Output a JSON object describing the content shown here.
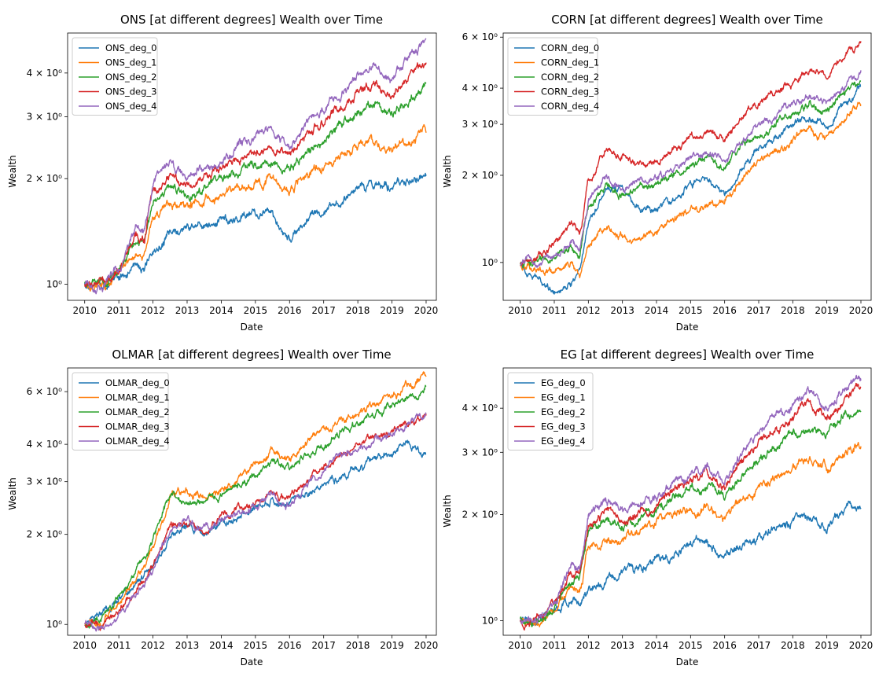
{
  "figure": {
    "x_label": "Date",
    "y_label": "Wealth"
  },
  "colors": {
    "deg_0": "#1f77b4",
    "deg_1": "#ff7f0e",
    "deg_2": "#2ca02c",
    "deg_3": "#d62728",
    "deg_4": "#9467bd"
  },
  "chart_data": [
    {
      "type": "line",
      "title": "ONS [at different degrees] Wealth over Time",
      "xlabel": "Date",
      "ylabel": "Wealth",
      "yscale": "log",
      "xlim": [
        2009.5,
        2020.3
      ],
      "ylim": [
        0.9,
        5.2
      ],
      "yticks": [
        {
          "value": 1,
          "label": "10⁰"
        },
        {
          "value": 2,
          "label": "2 × 10⁰"
        },
        {
          "value": 3,
          "label": "3 × 10⁰"
        },
        {
          "value": 4,
          "label": "4 × 10⁰"
        }
      ],
      "xticks": [
        "2010",
        "2011",
        "2012",
        "2013",
        "2014",
        "2015",
        "2016",
        "2017",
        "2018",
        "2019",
        "2020"
      ],
      "legend_position": "top-left",
      "x": [
        2010,
        2010.5,
        2011,
        2011.5,
        2011.75,
        2012,
        2012.5,
        2013,
        2013.5,
        2014,
        2014.5,
        2015,
        2015.5,
        2015.75,
        2016,
        2016.5,
        2017,
        2017.5,
        2018,
        2018.5,
        2019,
        2019.5,
        2020
      ],
      "series": [
        {
          "name": "ONS_deg_0",
          "values": [
            1.0,
            0.99,
            1.05,
            1.12,
            1.08,
            1.25,
            1.38,
            1.45,
            1.47,
            1.51,
            1.58,
            1.62,
            1.58,
            1.42,
            1.36,
            1.52,
            1.62,
            1.75,
            1.88,
            1.95,
            1.88,
            1.97,
            2.05
          ]
        },
        {
          "name": "ONS_deg_1",
          "values": [
            1.0,
            0.99,
            1.07,
            1.25,
            1.22,
            1.55,
            1.68,
            1.7,
            1.75,
            1.79,
            1.88,
            1.97,
            2.0,
            1.9,
            1.86,
            2.07,
            2.18,
            2.35,
            2.45,
            2.55,
            2.43,
            2.55,
            2.7
          ]
        },
        {
          "name": "ONS_deg_2",
          "values": [
            1.0,
            1.0,
            1.09,
            1.32,
            1.3,
            1.7,
            1.88,
            1.78,
            1.9,
            1.98,
            2.1,
            2.2,
            2.25,
            2.15,
            2.08,
            2.4,
            2.6,
            2.85,
            3.1,
            3.3,
            3.05,
            3.4,
            3.65
          ]
        },
        {
          "name": "ONS_deg_3",
          "values": [
            1.0,
            1.0,
            1.1,
            1.38,
            1.35,
            1.85,
            2.0,
            1.92,
            2.02,
            2.12,
            2.28,
            2.4,
            2.46,
            2.36,
            2.3,
            2.7,
            2.9,
            3.2,
            3.5,
            3.75,
            3.5,
            3.95,
            4.25
          ]
        },
        {
          "name": "ONS_deg_4",
          "values": [
            1.0,
            1.0,
            1.11,
            1.42,
            1.4,
            1.95,
            2.2,
            2.05,
            2.15,
            2.25,
            2.45,
            2.6,
            2.7,
            2.55,
            2.45,
            2.9,
            3.15,
            3.5,
            3.9,
            4.2,
            3.8,
            4.4,
            4.95
          ]
        }
      ]
    },
    {
      "type": "line",
      "title": "CORN [at different degrees] Wealth over Time",
      "xlabel": "Date",
      "ylabel": "Wealth",
      "yscale": "log",
      "xlim": [
        2009.5,
        2020.3
      ],
      "ylim": [
        0.74,
        6.2
      ],
      "yticks": [
        {
          "value": 1,
          "label": "10⁰"
        },
        {
          "value": 2,
          "label": "2 × 10⁰"
        },
        {
          "value": 3,
          "label": "3 × 10⁰"
        },
        {
          "value": 4,
          "label": "4 × 10⁰"
        },
        {
          "value": 6,
          "label": "6 × 10⁰"
        }
      ],
      "xticks": [
        "2010",
        "2011",
        "2012",
        "2013",
        "2014",
        "2015",
        "2016",
        "2017",
        "2018",
        "2019",
        "2020"
      ],
      "legend_position": "top-left",
      "x": [
        2010,
        2010.5,
        2011,
        2011.5,
        2011.75,
        2012,
        2012.5,
        2013,
        2013.5,
        2014,
        2014.5,
        2015,
        2015.5,
        2015.75,
        2016,
        2016.5,
        2017,
        2017.5,
        2018,
        2018.5,
        2019,
        2019.5,
        2020
      ],
      "series": [
        {
          "name": "CORN_deg_0",
          "values": [
            1.0,
            0.88,
            0.8,
            0.85,
            0.95,
            1.4,
            1.8,
            1.85,
            1.55,
            1.5,
            1.62,
            1.85,
            1.95,
            1.8,
            1.7,
            2.1,
            2.5,
            2.75,
            3.0,
            3.2,
            3.0,
            3.5,
            4.1
          ]
        },
        {
          "name": "CORN_deg_1",
          "values": [
            1.0,
            0.95,
            0.92,
            0.98,
            0.9,
            1.15,
            1.3,
            1.22,
            1.18,
            1.28,
            1.38,
            1.52,
            1.58,
            1.55,
            1.62,
            1.95,
            2.2,
            2.4,
            2.6,
            2.85,
            2.7,
            3.1,
            3.5
          ]
        },
        {
          "name": "CORN_deg_2",
          "values": [
            1.0,
            1.0,
            1.03,
            1.12,
            1.05,
            1.55,
            1.85,
            1.72,
            1.82,
            1.88,
            2.0,
            2.2,
            2.3,
            2.2,
            2.15,
            2.55,
            2.75,
            3.0,
            3.25,
            3.5,
            3.35,
            3.85,
            4.2
          ]
        },
        {
          "name": "CORN_deg_3",
          "values": [
            1.0,
            1.06,
            1.18,
            1.35,
            1.28,
            1.9,
            2.45,
            2.35,
            2.2,
            2.25,
            2.45,
            2.65,
            2.8,
            2.7,
            2.65,
            3.2,
            3.6,
            3.9,
            4.2,
            4.6,
            4.5,
            5.2,
            5.8
          ]
        },
        {
          "name": "CORN_deg_4",
          "values": [
            1.0,
            1.02,
            1.07,
            1.2,
            1.1,
            1.65,
            1.95,
            1.8,
            1.9,
            1.95,
            2.1,
            2.3,
            2.4,
            2.3,
            2.25,
            2.65,
            2.9,
            3.2,
            3.5,
            3.8,
            3.6,
            4.1,
            4.45
          ]
        }
      ]
    },
    {
      "type": "line",
      "title": "OLMAR [at different degrees] Wealth over Time",
      "xlabel": "Date",
      "ylabel": "Wealth",
      "yscale": "log",
      "xlim": [
        2009.5,
        2020.3
      ],
      "ylim": [
        0.92,
        7.2
      ],
      "yticks": [
        {
          "value": 1,
          "label": "10⁰"
        },
        {
          "value": 2,
          "label": "2 × 10⁰"
        },
        {
          "value": 3,
          "label": "3 × 10⁰"
        },
        {
          "value": 4,
          "label": "4 × 10⁰"
        },
        {
          "value": 6,
          "label": "6 × 10⁰"
        }
      ],
      "xticks": [
        "2010",
        "2011",
        "2012",
        "2013",
        "2014",
        "2015",
        "2016",
        "2017",
        "2018",
        "2019",
        "2020"
      ],
      "legend_position": "top-left",
      "x": [
        2010,
        2010.5,
        2011,
        2011.5,
        2012,
        2012.5,
        2013,
        2013.5,
        2014,
        2014.5,
        2015,
        2015.5,
        2016,
        2016.5,
        2017,
        2017.5,
        2018,
        2018.5,
        2019,
        2019.5,
        2020
      ],
      "series": [
        {
          "name": "OLMAR_deg_0",
          "values": [
            1.0,
            1.08,
            1.2,
            1.35,
            1.55,
            1.9,
            2.15,
            2.05,
            2.15,
            2.25,
            2.45,
            2.55,
            2.5,
            2.75,
            2.95,
            3.1,
            3.3,
            3.55,
            3.8,
            4.0,
            3.65
          ]
        },
        {
          "name": "OLMAR_deg_1",
          "values": [
            1.0,
            1.02,
            1.22,
            1.45,
            1.75,
            2.65,
            2.75,
            2.65,
            2.8,
            3.05,
            3.45,
            3.8,
            3.55,
            4.05,
            4.45,
            4.8,
            5.0,
            5.4,
            5.75,
            6.3,
            6.65
          ]
        },
        {
          "name": "OLMAR_deg_2",
          "values": [
            1.0,
            1.04,
            1.25,
            1.5,
            1.9,
            2.7,
            2.55,
            2.55,
            2.7,
            2.9,
            3.15,
            3.5,
            3.3,
            3.7,
            4.0,
            4.4,
            4.7,
            5.0,
            5.3,
            5.8,
            6.1
          ]
        },
        {
          "name": "OLMAR_deg_3",
          "values": [
            1.0,
            0.99,
            1.1,
            1.3,
            1.55,
            2.1,
            2.2,
            2.05,
            2.3,
            2.4,
            2.55,
            2.75,
            2.6,
            3.0,
            3.45,
            3.7,
            4.0,
            4.2,
            4.35,
            4.8,
            5.05
          ]
        },
        {
          "name": "OLMAR_deg_4",
          "values": [
            1.0,
            0.98,
            1.08,
            1.28,
            1.52,
            2.05,
            2.2,
            2.1,
            2.25,
            2.35,
            2.5,
            2.65,
            2.55,
            2.95,
            3.3,
            3.55,
            3.85,
            4.1,
            4.3,
            4.75,
            5.0
          ]
        }
      ]
    },
    {
      "type": "line",
      "title": "EG [at different degrees] Wealth over Time",
      "xlabel": "Date",
      "ylabel": "Wealth",
      "yscale": "log",
      "xlim": [
        2009.5,
        2020.3
      ],
      "ylim": [
        0.91,
        5.2
      ],
      "yticks": [
        {
          "value": 1,
          "label": "10⁰"
        },
        {
          "value": 2,
          "label": "2 × 10⁰"
        },
        {
          "value": 3,
          "label": "3 × 10⁰"
        },
        {
          "value": 4,
          "label": "4 × 10⁰"
        }
      ],
      "xticks": [
        "2010",
        "2011",
        "2012",
        "2013",
        "2014",
        "2015",
        "2016",
        "2017",
        "2018",
        "2019",
        "2020"
      ],
      "legend_position": "top-left",
      "x": [
        2010,
        2010.5,
        2011,
        2011.5,
        2011.75,
        2012,
        2012.5,
        2013,
        2013.5,
        2014,
        2014.5,
        2015,
        2015.5,
        2015.75,
        2016,
        2016.5,
        2017,
        2017.5,
        2018,
        2018.5,
        2019,
        2019.5,
        2020
      ],
      "series": [
        {
          "name": "EG_deg_0",
          "values": [
            1.0,
            1.0,
            1.06,
            1.15,
            1.12,
            1.22,
            1.3,
            1.35,
            1.42,
            1.5,
            1.57,
            1.62,
            1.65,
            1.58,
            1.52,
            1.65,
            1.72,
            1.82,
            1.9,
            1.97,
            1.85,
            2.0,
            2.12
          ]
        },
        {
          "name": "EG_deg_1",
          "values": [
            1.0,
            1.0,
            1.08,
            1.25,
            1.22,
            1.6,
            1.7,
            1.7,
            1.8,
            1.88,
            1.97,
            2.05,
            2.1,
            2.0,
            1.95,
            2.2,
            2.35,
            2.55,
            2.75,
            2.9,
            2.7,
            3.0,
            3.15
          ]
        },
        {
          "name": "EG_deg_2",
          "values": [
            1.0,
            1.0,
            1.09,
            1.32,
            1.3,
            1.75,
            1.95,
            1.85,
            1.95,
            2.05,
            2.2,
            2.35,
            2.45,
            2.3,
            2.25,
            2.6,
            2.85,
            3.15,
            3.4,
            3.6,
            3.35,
            3.75,
            4.0
          ]
        },
        {
          "name": "EG_deg_3",
          "values": [
            1.0,
            1.0,
            1.1,
            1.36,
            1.34,
            1.85,
            2.05,
            1.95,
            2.05,
            2.15,
            2.35,
            2.5,
            2.6,
            2.45,
            2.4,
            2.8,
            3.15,
            3.5,
            3.8,
            4.05,
            3.75,
            4.2,
            4.55
          ]
        },
        {
          "name": "EG_deg_4",
          "values": [
            1.0,
            1.0,
            1.12,
            1.4,
            1.38,
            1.95,
            2.2,
            2.05,
            2.15,
            2.25,
            2.45,
            2.62,
            2.72,
            2.55,
            2.5,
            2.95,
            3.4,
            3.8,
            4.1,
            4.4,
            4.0,
            4.5,
            4.95
          ]
        }
      ]
    }
  ]
}
